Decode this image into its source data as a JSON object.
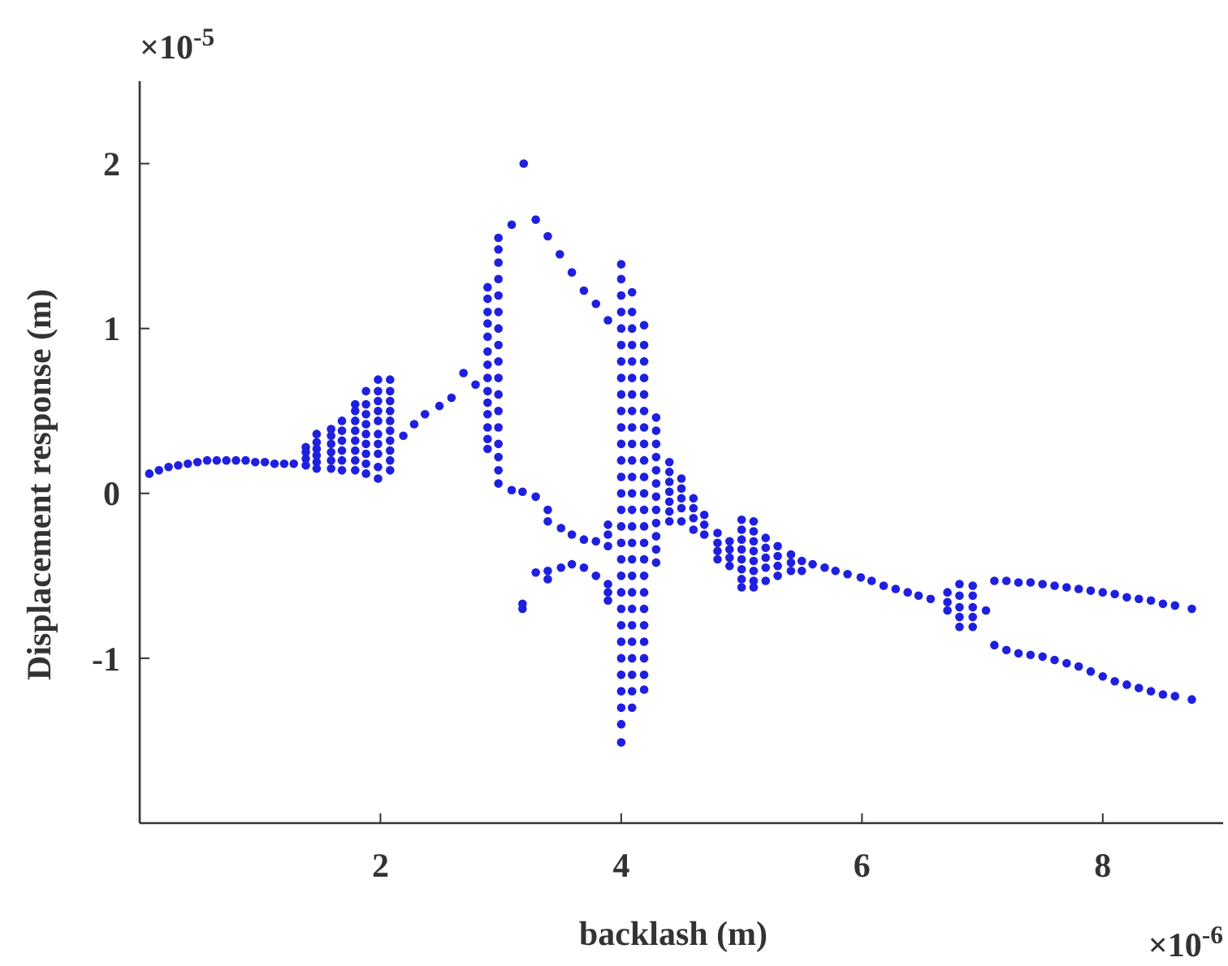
{
  "chart_data": {
    "type": "scatter",
    "xlabel": "backlash (m)",
    "ylabel": "Displacement response (m)",
    "annotations": [
      "×10$^{-5}$",
      "×10$^{-6}$"
    ],
    "xlim": [
      0,
      9
    ],
    "xticks": [
      2,
      4,
      6,
      8
    ],
    "ylim": [
      -2,
      2.5
    ],
    "yticks": [
      -1,
      0,
      1,
      2
    ],
    "grid": false,
    "marker": "circle",
    "series": [
      {
        "color": "#1f1fe0",
        "x": [
          0.08,
          0.16,
          0.24,
          0.32,
          0.4,
          0.48,
          0.56,
          0.64,
          0.72,
          0.8,
          0.88,
          0.96,
          1.04,
          1.12,
          1.2,
          1.28
        ],
        "values": [
          0.12,
          0.14,
          0.16,
          0.17,
          0.18,
          0.19,
          0.2,
          0.2,
          0.2,
          0.2,
          0.2,
          0.19,
          0.19,
          0.18,
          0.18,
          0.18
        ]
      },
      {
        "color": "#1f1fe0",
        "x": [
          1.38,
          1.38,
          1.38,
          1.38,
          1.47,
          1.47,
          1.47,
          1.47,
          1.47,
          1.47,
          1.59,
          1.59,
          1.59,
          1.59,
          1.59,
          1.59,
          1.68,
          1.68,
          1.68,
          1.68,
          1.68,
          1.68
        ],
        "values": [
          0.17,
          0.21,
          0.25,
          0.28,
          0.15,
          0.19,
          0.23,
          0.27,
          0.31,
          0.36,
          0.15,
          0.2,
          0.25,
          0.3,
          0.35,
          0.39,
          0.14,
          0.2,
          0.26,
          0.32,
          0.38,
          0.44
        ]
      },
      {
        "color": "#1f1fe0",
        "x": [
          1.79,
          1.79,
          1.79,
          1.79,
          1.79,
          1.79,
          1.79,
          1.79,
          1.88,
          1.88,
          1.88,
          1.88,
          1.88,
          1.88,
          1.88,
          1.88,
          1.88
        ],
        "values": [
          0.14,
          0.2,
          0.26,
          0.32,
          0.38,
          0.44,
          0.5,
          0.54,
          0.12,
          0.18,
          0.24,
          0.3,
          0.36,
          0.42,
          0.48,
          0.54,
          0.62
        ]
      },
      {
        "color": "#1f1fe0",
        "x": [
          1.98,
          1.98,
          1.98,
          1.98,
          1.98,
          1.98,
          1.98,
          1.98,
          1.98,
          1.98,
          2.08,
          2.08,
          2.08,
          2.08,
          2.08,
          2.08,
          2.08,
          2.08,
          2.08,
          2.08
        ],
        "values": [
          0.09,
          0.16,
          0.24,
          0.3,
          0.36,
          0.44,
          0.5,
          0.56,
          0.62,
          0.69,
          0.14,
          0.2,
          0.26,
          0.32,
          0.38,
          0.44,
          0.5,
          0.56,
          0.62,
          0.69
        ]
      },
      {
        "color": "#1f1fe0",
        "x": [
          2.19,
          2.28,
          2.37,
          2.49,
          2.59,
          2.69,
          2.79
        ],
        "values": [
          0.35,
          0.42,
          0.48,
          0.53,
          0.58,
          0.73,
          0.66
        ]
      },
      {
        "color": "#1f1fe0",
        "x": [
          2.89,
          2.89,
          2.89,
          2.89,
          2.89,
          2.89,
          2.89,
          2.89,
          2.89,
          2.89,
          2.89,
          2.89,
          2.89,
          2.89
        ],
        "values": [
          0.27,
          0.33,
          0.4,
          0.48,
          0.55,
          0.62,
          0.7,
          0.78,
          0.86,
          0.95,
          1.03,
          1.1,
          1.18,
          1.25
        ]
      },
      {
        "color": "#1f1fe0",
        "x": [
          2.98,
          2.98,
          2.98,
          2.98,
          2.98,
          2.98,
          2.98,
          2.98,
          2.98,
          2.98,
          2.98,
          2.98,
          2.98,
          2.98,
          2.98,
          2.98,
          2.98
        ],
        "values": [
          0.06,
          0.14,
          0.22,
          0.3,
          0.4,
          0.5,
          0.6,
          0.7,
          0.8,
          0.9,
          1.0,
          1.1,
          1.2,
          1.3,
          1.4,
          1.48,
          1.55
        ]
      },
      {
        "color": "#1f1fe0",
        "x": [
          3.09,
          3.19,
          3.29,
          3.39,
          3.49,
          3.59,
          3.69,
          3.79,
          3.89
        ],
        "values": [
          1.63,
          2.0,
          1.66,
          1.56,
          1.45,
          1.34,
          1.23,
          1.15,
          1.05
        ]
      },
      {
        "color": "#1f1fe0",
        "x": [
          3.09,
          3.18,
          3.29,
          3.39,
          3.39,
          3.5,
          3.59,
          3.69,
          3.79,
          3.89,
          3.89,
          3.89
        ],
        "values": [
          0.02,
          0.01,
          -0.02,
          -0.1,
          -0.17,
          -0.21,
          -0.25,
          -0.28,
          -0.29,
          -0.19,
          -0.25,
          -0.32
        ]
      },
      {
        "color": "#1f1fe0",
        "x": [
          3.18,
          3.18,
          3.29,
          3.39,
          3.39,
          3.5,
          3.59,
          3.69,
          3.79,
          3.89,
          3.89,
          3.89
        ],
        "values": [
          -0.67,
          -0.7,
          -0.48,
          -0.47,
          -0.52,
          -0.45,
          -0.43,
          -0.45,
          -0.5,
          -0.55,
          -0.6,
          -0.65
        ]
      },
      {
        "color": "#1f1fe0",
        "x": [
          4.0,
          4.0,
          4.0,
          4.0,
          4.0,
          4.0,
          4.0,
          4.0,
          4.0,
          4.0,
          4.0,
          4.0,
          4.0,
          4.0,
          4.0,
          4.0,
          4.0,
          4.0,
          4.0,
          4.0,
          4.0,
          4.0,
          4.0,
          4.0,
          4.0,
          4.0,
          4.0,
          4.0,
          4.0,
          4.0
        ],
        "values": [
          1.39,
          1.3,
          1.2,
          1.1,
          1.0,
          0.9,
          0.8,
          0.7,
          0.6,
          0.5,
          0.4,
          0.3,
          0.2,
          0.1,
          0.0,
          -0.1,
          -0.2,
          -0.3,
          -0.4,
          -0.5,
          -0.6,
          -0.7,
          -0.8,
          -0.9,
          -1.0,
          -1.1,
          -1.2,
          -1.3,
          -1.4,
          -1.51
        ]
      },
      {
        "color": "#1f1fe0",
        "x": [
          4.09,
          4.09,
          4.09,
          4.09,
          4.09,
          4.09,
          4.09,
          4.09,
          4.09,
          4.09,
          4.09,
          4.09,
          4.09,
          4.09,
          4.09,
          4.09,
          4.09,
          4.09,
          4.09,
          4.09,
          4.09,
          4.09,
          4.09,
          4.09,
          4.09,
          4.09
        ],
        "values": [
          1.22,
          1.1,
          1.0,
          0.9,
          0.8,
          0.7,
          0.6,
          0.5,
          0.4,
          0.3,
          0.2,
          0.1,
          0.0,
          -0.1,
          -0.2,
          -0.3,
          -0.4,
          -0.5,
          -0.6,
          -0.7,
          -0.8,
          -0.9,
          -1.0,
          -1.1,
          -1.2,
          -1.3
        ]
      },
      {
        "color": "#1f1fe0",
        "x": [
          4.19,
          4.19,
          4.19,
          4.19,
          4.19,
          4.19,
          4.19,
          4.19,
          4.19,
          4.19,
          4.19,
          4.19,
          4.19,
          4.19,
          4.19,
          4.19,
          4.19,
          4.19,
          4.19,
          4.19,
          4.19,
          4.19,
          4.19
        ],
        "values": [
          1.02,
          0.9,
          0.8,
          0.7,
          0.6,
          0.5,
          0.4,
          0.3,
          0.2,
          0.1,
          0.0,
          -0.1,
          -0.2,
          -0.3,
          -0.4,
          -0.5,
          -0.6,
          -0.7,
          -0.8,
          -0.9,
          -1.0,
          -1.1,
          -1.19
        ]
      },
      {
        "color": "#1f1fe0",
        "x": [
          4.29,
          4.29,
          4.29,
          4.29,
          4.29,
          4.29,
          4.29,
          4.29,
          4.29,
          4.29,
          4.29,
          4.29,
          4.4,
          4.4,
          4.4,
          4.4,
          4.4,
          4.4,
          4.4,
          4.5,
          4.5,
          4.5,
          4.5,
          4.5
        ],
        "values": [
          0.46,
          0.38,
          0.3,
          0.22,
          0.14,
          0.06,
          -0.02,
          -0.1,
          -0.18,
          -0.26,
          -0.34,
          -0.42,
          0.19,
          0.13,
          0.07,
          0.01,
          -0.05,
          -0.11,
          -0.17,
          0.09,
          0.03,
          -0.03,
          -0.09,
          -0.17
        ]
      },
      {
        "color": "#1f1fe0",
        "x": [
          4.6,
          4.6,
          4.6,
          4.6,
          4.69,
          4.69,
          4.69,
          4.8,
          4.8,
          4.8,
          4.8,
          4.9,
          4.9,
          4.9,
          4.9
        ],
        "values": [
          -0.03,
          -0.09,
          -0.15,
          -0.22,
          -0.13,
          -0.19,
          -0.25,
          -0.24,
          -0.3,
          -0.35,
          -0.4,
          -0.29,
          -0.34,
          -0.39,
          -0.44
        ]
      },
      {
        "color": "#1f1fe0",
        "x": [
          5.0,
          5.0,
          5.0,
          5.0,
          5.0,
          5.0,
          5.0,
          5.0,
          5.1,
          5.1,
          5.1,
          5.1,
          5.1,
          5.1,
          5.1,
          5.1
        ],
        "values": [
          -0.16,
          -0.22,
          -0.28,
          -0.34,
          -0.4,
          -0.46,
          -0.52,
          -0.57,
          -0.17,
          -0.23,
          -0.29,
          -0.35,
          -0.41,
          -0.47,
          -0.53,
          -0.57
        ]
      },
      {
        "color": "#1f1fe0",
        "x": [
          5.2,
          5.2,
          5.2,
          5.2,
          5.2,
          5.3,
          5.3,
          5.3,
          5.3,
          5.41,
          5.41,
          5.41,
          5.5,
          5.5
        ],
        "values": [
          -0.27,
          -0.33,
          -0.39,
          -0.45,
          -0.53,
          -0.32,
          -0.38,
          -0.44,
          -0.5,
          -0.37,
          -0.42,
          -0.47,
          -0.41,
          -0.47
        ]
      },
      {
        "color": "#1f1fe0",
        "x": [
          5.59,
          5.69,
          5.78,
          5.88,
          5.99,
          6.08,
          6.18,
          6.28,
          6.38,
          6.47,
          6.57
        ],
        "values": [
          -0.43,
          -0.45,
          -0.47,
          -0.49,
          -0.51,
          -0.53,
          -0.56,
          -0.58,
          -0.6,
          -0.62,
          -0.64
        ]
      },
      {
        "color": "#1f1fe0",
        "x": [
          6.71,
          6.71,
          6.71,
          6.81,
          6.81,
          6.81,
          6.81,
          6.81,
          6.92,
          6.92,
          6.92,
          6.92,
          6.92,
          7.03
        ],
        "values": [
          -0.6,
          -0.66,
          -0.71,
          -0.55,
          -0.62,
          -0.69,
          -0.75,
          -0.81,
          -0.56,
          -0.62,
          -0.69,
          -0.75,
          -0.81,
          -0.71
        ]
      },
      {
        "color": "#1f1fe0",
        "x": [
          7.1,
          7.2,
          7.3,
          7.4,
          7.5,
          7.6,
          7.7,
          7.8,
          7.9,
          8.0,
          8.1,
          8.2,
          8.3,
          8.4,
          8.5,
          8.6,
          8.74
        ],
        "values": [
          -0.53,
          -0.53,
          -0.54,
          -0.54,
          -0.55,
          -0.56,
          -0.57,
          -0.58,
          -0.59,
          -0.6,
          -0.61,
          -0.63,
          -0.64,
          -0.65,
          -0.67,
          -0.68,
          -0.7
        ]
      },
      {
        "color": "#1f1fe0",
        "x": [
          7.1,
          7.2,
          7.3,
          7.4,
          7.5,
          7.6,
          7.7,
          7.8,
          7.9,
          8.0,
          8.1,
          8.2,
          8.3,
          8.4,
          8.5,
          8.6,
          8.74
        ],
        "values": [
          -0.92,
          -0.95,
          -0.97,
          -0.98,
          -0.99,
          -1.01,
          -1.03,
          -1.05,
          -1.08,
          -1.11,
          -1.14,
          -1.16,
          -1.18,
          -1.2,
          -1.22,
          -1.23,
          -1.25
        ]
      }
    ]
  }
}
